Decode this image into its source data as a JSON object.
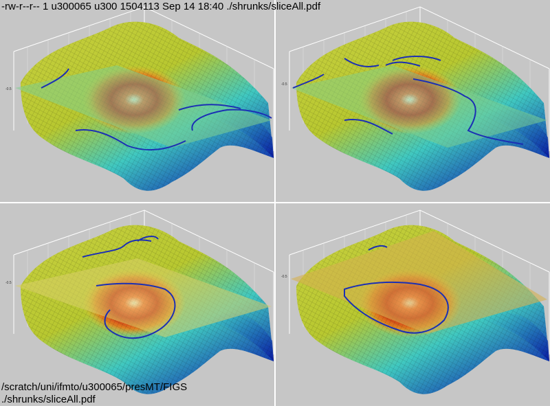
{
  "header": {
    "file_line": "-rw-r--r-- 1 u300065 u300 1504113 Sep 14 18:40 ./shrunks/sliceAll.pdf"
  },
  "footer": {
    "path_line": "/scratch/uni/ifmto/u300065/presMT/FIGS",
    "file_line": "./shrunks/sliceAll.pdf"
  },
  "colors": {
    "background": "#c6c6c6",
    "contour": "#1b2fb4",
    "plane_green": "#7fd08e",
    "plane_yellow": "#d8cf6a",
    "plane_orange": "#d6b050"
  }
}
